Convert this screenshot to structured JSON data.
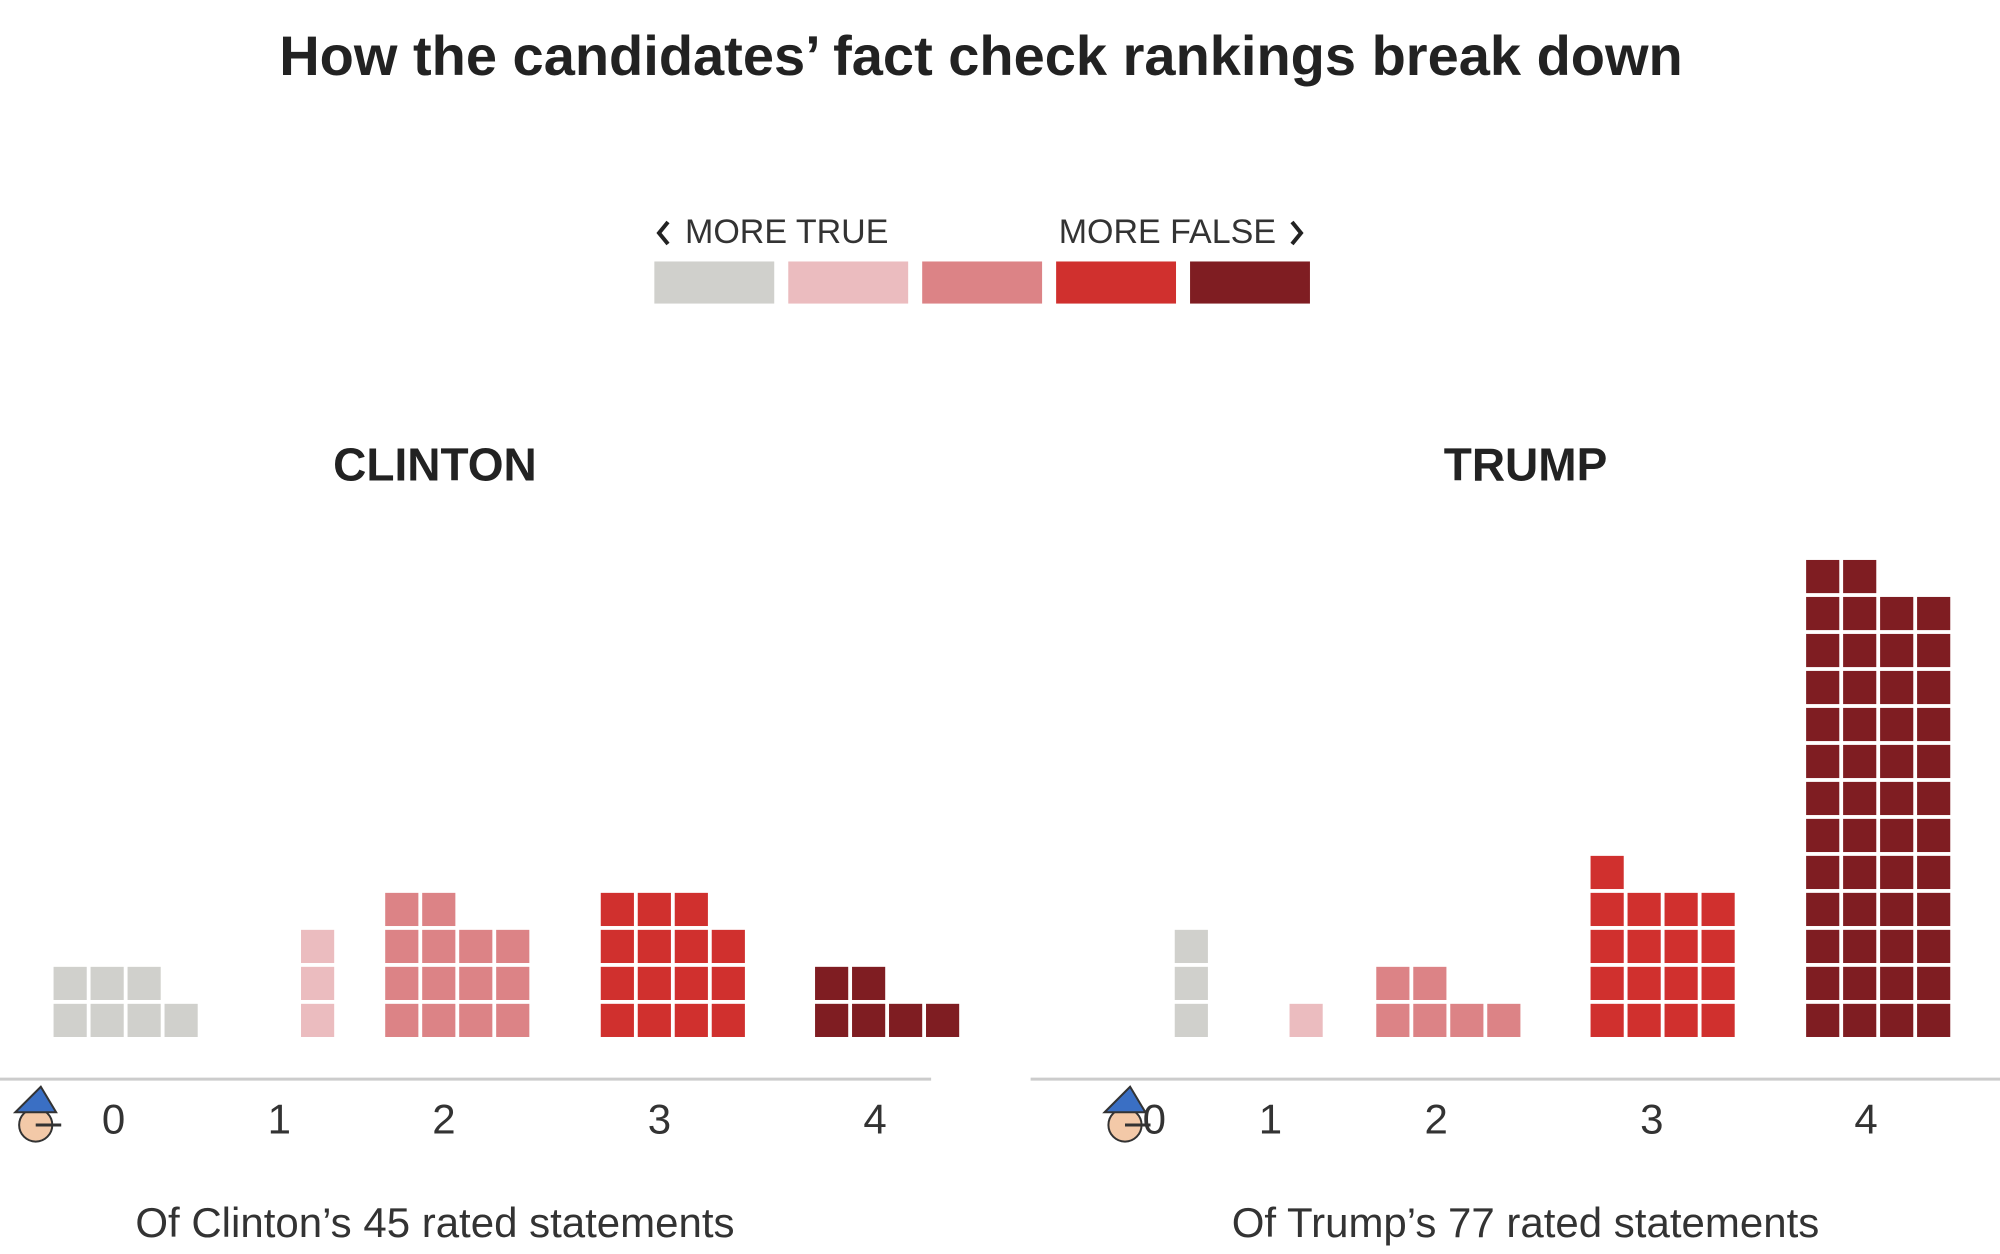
{
  "title": "How the candidates’ fact check rankings break down",
  "legend": {
    "left": "MORE TRUE",
    "right": "MORE FALSE",
    "colors": [
      "#d0d0cc",
      "#ebbcbf",
      "#dc8386",
      "#d0302e",
      "#7f1d22"
    ]
  },
  "chart_data": [
    {
      "type": "waffle",
      "title": "CLINTON",
      "categories": [
        "0",
        "1",
        "2",
        "3",
        "4"
      ],
      "values": [
        7,
        3,
        14,
        15,
        6
      ],
      "colors": [
        "#d0d0cc",
        "#ebbcbf",
        "#dc8386",
        "#d0302e",
        "#7f1d22"
      ],
      "note": "Of Clinton’s 45 rated statements"
    },
    {
      "type": "waffle",
      "title": "TRUMP",
      "categories": [
        "0",
        "1",
        "2",
        "3",
        "4"
      ],
      "values": [
        3,
        1,
        6,
        17,
        50
      ],
      "colors": [
        "#d0d0cc",
        "#ebbcbf",
        "#dc8386",
        "#d0302e",
        "#7f1d22"
      ],
      "note": "Of Trump’s 77 rated statements"
    }
  ]
}
